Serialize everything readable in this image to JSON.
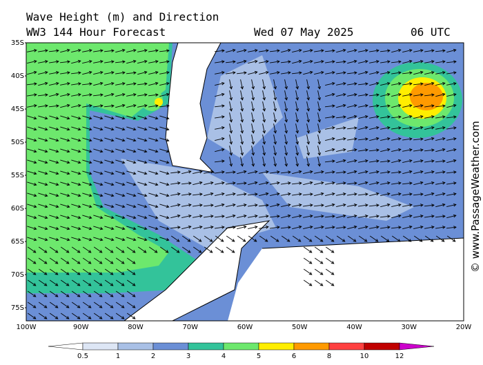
{
  "header": {
    "title": "Wave Height (m) and Direction",
    "model": "WW3 144 Hour Forecast",
    "date": "Wed 07 May 2025",
    "time": "06 UTC"
  },
  "latitude_labels": [
    "35S",
    "40S",
    "45S",
    "50S",
    "55S",
    "60S",
    "65S",
    "70S",
    "75S"
  ],
  "longitude_labels": [
    "100W",
    "90W",
    "80W",
    "70W",
    "60W",
    "50W",
    "40W",
    "30W",
    "20W"
  ],
  "colorbar": {
    "labels": [
      "0.5",
      "1",
      "2",
      "3",
      "4",
      "5",
      "6",
      "8",
      "10",
      "12"
    ],
    "colors": [
      "#ffffff",
      "#dde6f5",
      "#a9c0e6",
      "#6b8fd6",
      "#33c39a",
      "#6de86d",
      "#ffee00",
      "#ff9a00",
      "#ff4040",
      "#c00000",
      "#cc00cc"
    ]
  },
  "watermark": "© www.PassageWeather.com"
}
